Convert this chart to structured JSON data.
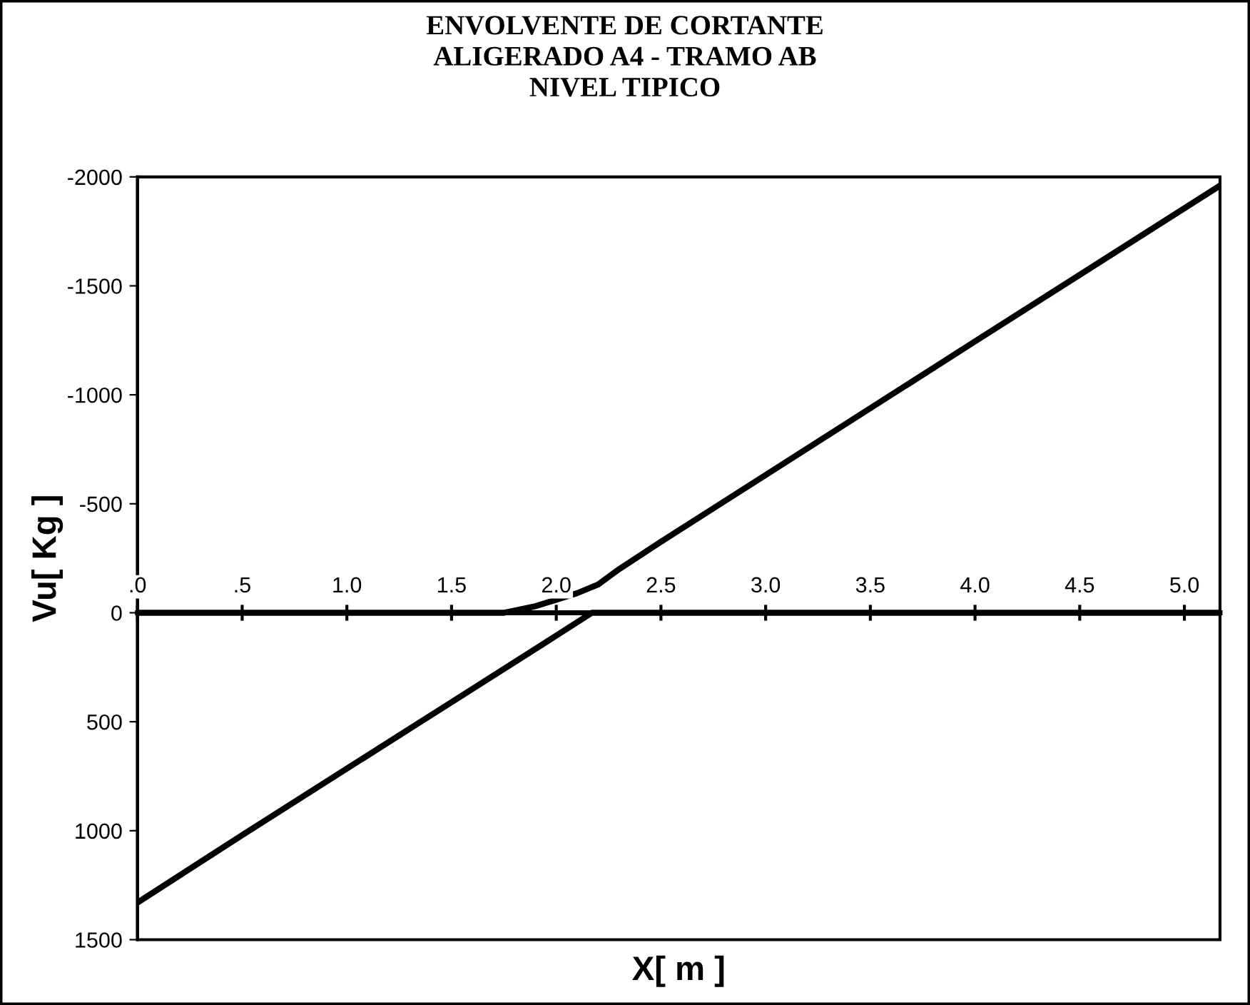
{
  "chart_data": {
    "type": "line",
    "title": "ENVOLVENTE DE CORTANTE\nALIGERADO A4 - TRAMO AB\nNIVEL TIPICO",
    "xlabel": "X[ m ]",
    "ylabel": "Vu[ Kg ]",
    "series": [
      {
        "color": "#000000",
        "x": [
          0,
          0.5,
          1.0,
          1.5,
          2.0,
          2.17,
          3.0,
          4.0,
          5.17
        ],
        "values": [
          1330,
          1020,
          715,
          410,
          105,
          0,
          0,
          0,
          0
        ]
      },
      {
        "color": "#000000",
        "x": [
          0,
          1.0,
          1.75,
          1.9,
          2.0,
          2.1,
          2.2,
          2.3,
          2.5,
          3.0,
          4.0,
          5.17
        ],
        "values": [
          0,
          0,
          0,
          -30,
          -60,
          -90,
          -130,
          -200,
          -326,
          -632,
          -1245,
          -1960
        ]
      }
    ],
    "xlim": [
      0,
      5.17
    ],
    "ylim": [
      1500,
      -2000
    ],
    "xticks": [
      {
        "value": 0,
        "label": ".0"
      },
      {
        "value": 0.5,
        "label": ".5"
      },
      {
        "value": 1,
        "label": "1.0"
      },
      {
        "value": 1.5,
        "label": "1.5"
      },
      {
        "value": 2,
        "label": "2.0"
      },
      {
        "value": 2.5,
        "label": "2.5"
      },
      {
        "value": 3,
        "label": "3.0"
      },
      {
        "value": 3.5,
        "label": "3.5"
      },
      {
        "value": 4,
        "label": "4.0"
      },
      {
        "value": 4.5,
        "label": "4.5"
      },
      {
        "value": 5,
        "label": "5.0"
      }
    ],
    "yticks": [
      -2000,
      -1500,
      -1000,
      -500,
      0,
      500,
      1000,
      1500
    ],
    "grid": false,
    "legend": false,
    "marker": "none",
    "line_style": "solid"
  }
}
